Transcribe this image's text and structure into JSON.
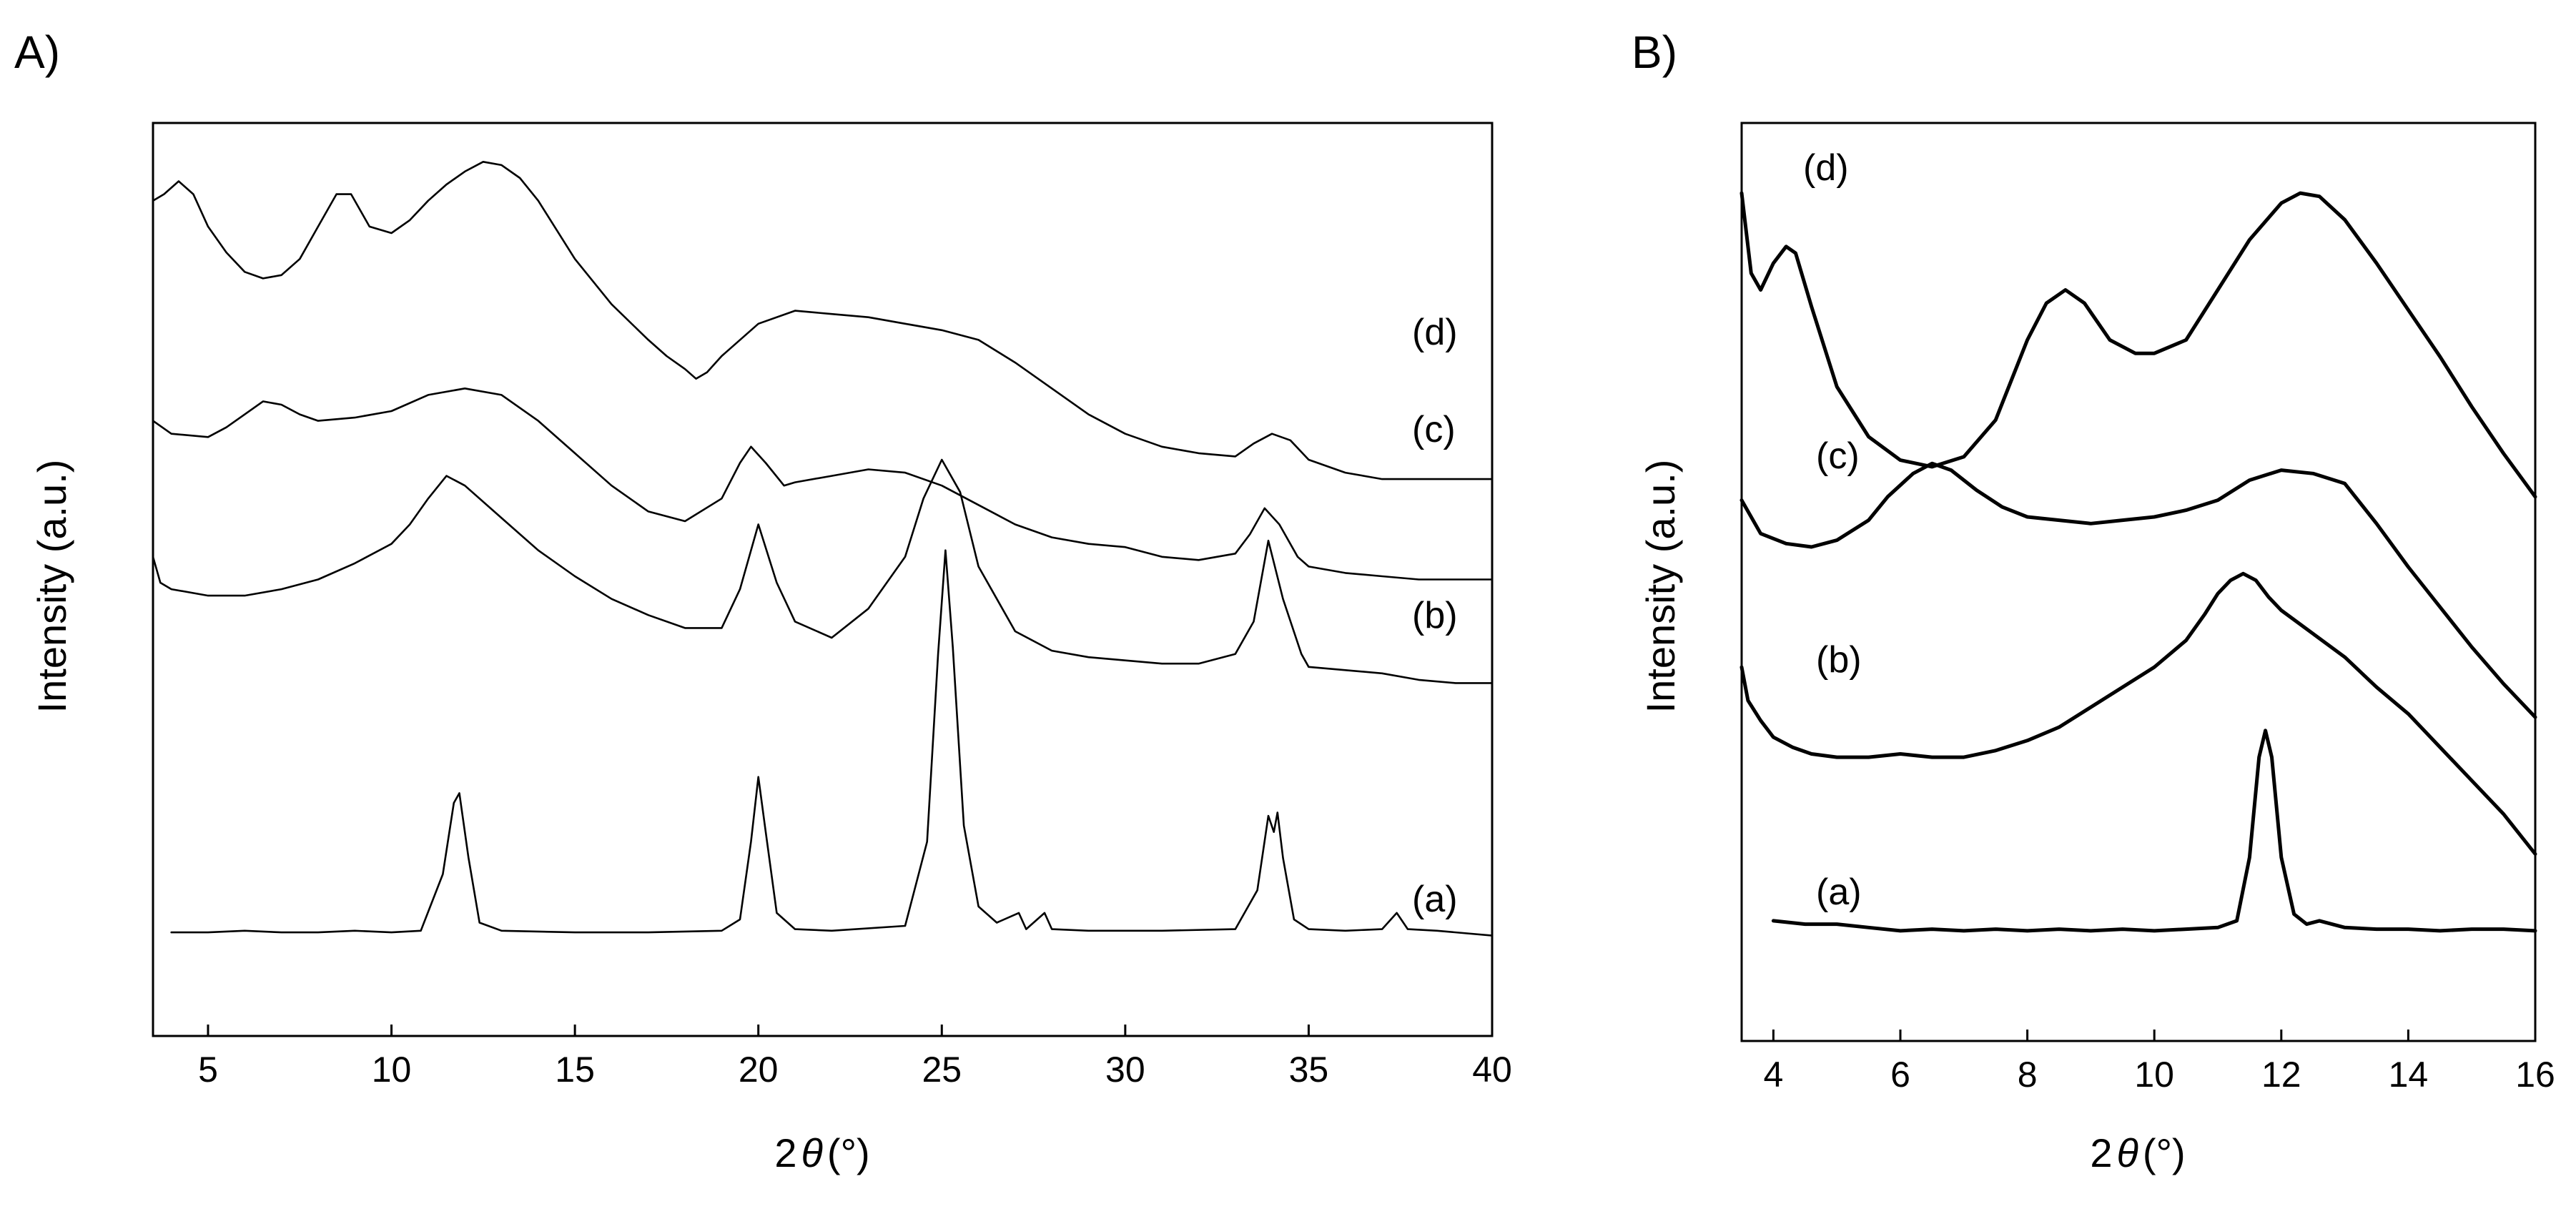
{
  "chart_data": [
    {
      "panel": "A)",
      "type": "line",
      "xlabel_prefix": "2",
      "xlabel_theta": "θ",
      "xlabel_suffix": "(°)",
      "ylabel": "Intensity (a.u.)",
      "xlim": [
        3.5,
        40
      ],
      "xticks": [
        5,
        10,
        15,
        20,
        25,
        30,
        35,
        40
      ],
      "yticks_shown": false,
      "series": [
        {
          "name": "(a)",
          "x": [
            4,
            5,
            6,
            7,
            8,
            9,
            10,
            10.8,
            11.4,
            11.7,
            11.85,
            12.1,
            12.4,
            13,
            15,
            17,
            19,
            19.5,
            19.8,
            20.0,
            20.2,
            20.5,
            21,
            22,
            24,
            24.6,
            24.9,
            25.1,
            25.3,
            25.6,
            26,
            26.5,
            27.1,
            27.3,
            27.8,
            28,
            29,
            31,
            33,
            33.6,
            33.9,
            34.05,
            34.15,
            34.3,
            34.6,
            35,
            36,
            37,
            37.4,
            37.7,
            38.5,
            40
          ],
          "y": [
            0.2,
            0.2,
            0.25,
            0.2,
            0.2,
            0.25,
            0.2,
            0.25,
            2.0,
            4.2,
            4.5,
            2.5,
            0.5,
            0.25,
            0.2,
            0.2,
            0.25,
            0.6,
            3.0,
            5.0,
            3.3,
            0.8,
            0.3,
            0.25,
            0.4,
            3.0,
            8.8,
            12.0,
            9.0,
            3.5,
            1.0,
            0.5,
            0.8,
            0.3,
            0.8,
            0.3,
            0.25,
            0.25,
            0.3,
            1.5,
            3.8,
            3.3,
            3.9,
            2.5,
            0.6,
            0.3,
            0.25,
            0.3,
            0.8,
            0.3,
            0.25,
            0.1
          ]
        },
        {
          "name": "(b)",
          "x": [
            3.5,
            3.7,
            4,
            5,
            6,
            7,
            8,
            9,
            10,
            10.5,
            11,
            11.5,
            12,
            13,
            14,
            15,
            16,
            17,
            18,
            19,
            19.5,
            20,
            20.5,
            21,
            22,
            23,
            24,
            24.5,
            25,
            25.5,
            26,
            27,
            28,
            29,
            30,
            31,
            32,
            33,
            33.5,
            33.9,
            34.3,
            34.8,
            35,
            36,
            37,
            38,
            39,
            40
          ],
          "y": [
            11.8,
            11.0,
            10.8,
            10.6,
            10.6,
            10.8,
            11.1,
            11.6,
            12.2,
            12.8,
            13.6,
            14.3,
            14.0,
            13.0,
            12.0,
            11.2,
            10.5,
            10.0,
            9.6,
            9.6,
            10.8,
            12.8,
            11.0,
            9.8,
            9.3,
            10.2,
            11.8,
            13.6,
            14.8,
            13.8,
            11.5,
            9.5,
            8.9,
            8.7,
            8.6,
            8.5,
            8.5,
            8.8,
            9.8,
            12.3,
            10.5,
            8.8,
            8.4,
            8.3,
            8.2,
            8.0,
            7.9,
            7.9
          ]
        },
        {
          "name": "(c)",
          "x": [
            3.5,
            4,
            5,
            5.5,
            6,
            6.5,
            7,
            7.5,
            8,
            9,
            10,
            11,
            12,
            13,
            14,
            15,
            16,
            17,
            18,
            19,
            19.5,
            19.8,
            20.2,
            20.7,
            21,
            22,
            23,
            24,
            25,
            26,
            27,
            28,
            29,
            30,
            31,
            32,
            33,
            33.4,
            33.8,
            34.2,
            34.7,
            35,
            36,
            37,
            38,
            39,
            40
          ],
          "y": [
            16.0,
            15.6,
            15.5,
            15.8,
            16.2,
            16.6,
            16.5,
            16.2,
            16.0,
            16.1,
            16.3,
            16.8,
            17.0,
            16.8,
            16.0,
            15.0,
            14.0,
            13.2,
            12.9,
            13.6,
            14.7,
            15.2,
            14.7,
            14.0,
            14.1,
            14.3,
            14.5,
            14.4,
            14.0,
            13.4,
            12.8,
            12.4,
            12.2,
            12.1,
            11.8,
            11.7,
            11.9,
            12.5,
            13.3,
            12.8,
            11.8,
            11.5,
            11.3,
            11.2,
            11.1,
            11.1,
            11.1
          ]
        },
        {
          "name": "(d)",
          "x": [
            3.5,
            3.8,
            4.2,
            4.6,
            5,
            5.5,
            6,
            6.5,
            7,
            7.5,
            8,
            8.5,
            8.9,
            9.4,
            10,
            10.5,
            11,
            11.5,
            12,
            12.5,
            13,
            13.5,
            14,
            15,
            16,
            17,
            17.5,
            18,
            18.3,
            18.6,
            19,
            20,
            21,
            22,
            23,
            24,
            25,
            26,
            27,
            28,
            29,
            30,
            31,
            32,
            33,
            33.5,
            34,
            34.5,
            35,
            36,
            37,
            38,
            39,
            40
          ],
          "y": [
            22.8,
            23.0,
            23.4,
            23.0,
            22.0,
            21.2,
            20.6,
            20.4,
            20.5,
            21.0,
            22.0,
            23.0,
            23.0,
            22.0,
            21.8,
            22.2,
            22.8,
            23.3,
            23.7,
            24.0,
            23.9,
            23.5,
            22.8,
            21.0,
            19.6,
            18.5,
            18.0,
            17.6,
            17.3,
            17.5,
            18.0,
            19.0,
            19.4,
            19.3,
            19.2,
            19.0,
            18.8,
            18.5,
            17.8,
            17.0,
            16.2,
            15.6,
            15.2,
            15.0,
            14.9,
            15.3,
            15.6,
            15.4,
            14.8,
            14.4,
            14.2,
            14.2,
            14.2,
            14.2
          ]
        }
      ],
      "label_order": [
        "(a)",
        "(b)",
        "(c)",
        "(d)"
      ]
    },
    {
      "panel": "B)",
      "type": "line",
      "xlabel_prefix": "2",
      "xlabel_theta": "θ",
      "xlabel_suffix": "(°)",
      "ylabel": "Intensity (a.u.)",
      "xlim": [
        3.5,
        16
      ],
      "xticks": [
        4,
        6,
        8,
        10,
        12,
        14,
        16
      ],
      "yticks_shown": false,
      "series": [
        {
          "name": "(a)",
          "x": [
            4,
            4.5,
            5,
            5.5,
            6,
            6.5,
            7,
            7.5,
            8,
            8.5,
            9,
            9.5,
            10,
            10.5,
            11,
            11.3,
            11.5,
            11.65,
            11.75,
            11.85,
            12.0,
            12.2,
            12.4,
            12.6,
            13,
            13.5,
            14,
            14.5,
            15,
            15.5,
            16
          ],
          "y": [
            0.6,
            0.5,
            0.5,
            0.4,
            0.3,
            0.35,
            0.3,
            0.35,
            0.3,
            0.35,
            0.3,
            0.35,
            0.3,
            0.35,
            0.4,
            0.6,
            2.5,
            5.5,
            6.3,
            5.5,
            2.5,
            0.8,
            0.5,
            0.6,
            0.4,
            0.35,
            0.35,
            0.3,
            0.35,
            0.35,
            0.3
          ]
        },
        {
          "name": "(b)",
          "x": [
            3.5,
            3.6,
            3.8,
            4,
            4.3,
            4.6,
            5,
            5.5,
            6,
            6.5,
            7,
            7.5,
            8,
            8.5,
            9,
            9.5,
            10,
            10.5,
            10.8,
            11,
            11.2,
            11.4,
            11.6,
            11.8,
            12,
            12.5,
            13,
            13.5,
            14,
            14.5,
            15,
            15.5,
            16
          ],
          "y": [
            8.2,
            7.2,
            6.6,
            6.1,
            5.8,
            5.6,
            5.5,
            5.5,
            5.6,
            5.5,
            5.5,
            5.7,
            6.0,
            6.4,
            7.0,
            7.6,
            8.2,
            9.0,
            9.8,
            10.4,
            10.8,
            11.0,
            10.8,
            10.3,
            9.9,
            9.2,
            8.5,
            7.6,
            6.8,
            5.8,
            4.8,
            3.8,
            2.6
          ]
        },
        {
          "name": "(c)",
          "x": [
            3.5,
            3.8,
            4.2,
            4.6,
            5,
            5.5,
            5.8,
            6.2,
            6.5,
            6.8,
            7.2,
            7.6,
            8,
            8.5,
            9,
            9.5,
            10,
            10.5,
            11,
            11.5,
            12,
            12.5,
            13,
            13.5,
            14,
            14.5,
            15,
            15.5,
            16
          ],
          "y": [
            13.2,
            12.2,
            11.9,
            11.8,
            12.0,
            12.6,
            13.3,
            14.0,
            14.3,
            14.1,
            13.5,
            13.0,
            12.7,
            12.6,
            12.5,
            12.6,
            12.7,
            12.9,
            13.2,
            13.8,
            14.1,
            14.0,
            13.7,
            12.5,
            11.2,
            10.0,
            8.8,
            7.7,
            6.7
          ]
        },
        {
          "name": "(d)",
          "x": [
            3.5,
            3.65,
            3.8,
            4,
            4.2,
            4.35,
            4.6,
            5,
            5.5,
            6,
            6.5,
            7,
            7.5,
            8,
            8.3,
            8.6,
            8.9,
            9.3,
            9.7,
            10,
            10.5,
            11,
            11.5,
            12,
            12.3,
            12.6,
            13,
            13.5,
            14,
            14.5,
            15,
            15.5,
            16
          ],
          "y": [
            22.4,
            20.0,
            19.5,
            20.3,
            20.8,
            20.6,
            19.0,
            16.6,
            15.1,
            14.4,
            14.2,
            14.5,
            15.6,
            18.0,
            19.1,
            19.5,
            19.1,
            18.0,
            17.6,
            17.6,
            18.0,
            19.5,
            21.0,
            22.1,
            22.4,
            22.3,
            21.6,
            20.3,
            18.9,
            17.5,
            16.0,
            14.6,
            13.3
          ]
        }
      ],
      "label_order": [
        "(a)",
        "(b)",
        "(c)",
        "(d)"
      ]
    }
  ]
}
